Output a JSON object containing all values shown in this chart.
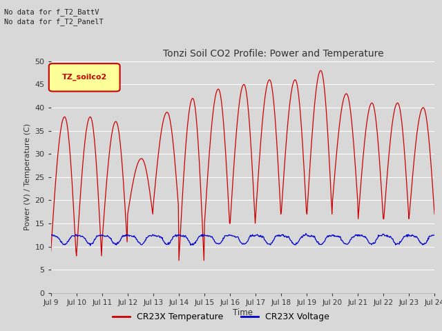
{
  "title": "Tonzi Soil CO2 Profile: Power and Temperature",
  "ylabel": "Power (V) / Temperature (C)",
  "xlabel": "Time",
  "top_label1": "No data for f_T2_BattV",
  "top_label2": "No data for f_T2_PanelT",
  "legend_box_label": "TZ_soilco2",
  "ylim": [
    0,
    50
  ],
  "yticks": [
    0,
    5,
    10,
    15,
    20,
    25,
    30,
    35,
    40,
    45,
    50
  ],
  "xtick_labels": [
    "Jul 9",
    "Jul 10",
    "Jul 11",
    "Jul 12",
    "Jul 13",
    "Jul 14",
    "Jul 15",
    "Jul 16",
    "Jul 17",
    "Jul 18",
    "Jul 19",
    "Jul 20",
    "Jul 21",
    "Jul 22",
    "Jul 23",
    "Jul 24"
  ],
  "bg_color": "#d8d8d8",
  "plot_bg_color": "#d8d8d8",
  "grid_color": "#ffffff",
  "temp_color": "#cc0000",
  "volt_color": "#0000cc",
  "legend_temp": "CR23X Temperature",
  "legend_volt": "CR23X Voltage",
  "n_days": 15,
  "temp_mins": [
    9,
    8,
    11,
    17,
    19,
    7,
    15,
    15,
    17,
    17.5,
    17,
    20,
    16,
    16,
    17
  ],
  "temp_maxs": [
    38,
    38,
    37,
    29,
    39,
    42,
    44,
    45,
    46,
    46,
    48,
    43,
    41,
    41,
    40
  ],
  "volt_base": 12.0,
  "volt_dip": 1.5,
  "pts_per_day": 48
}
